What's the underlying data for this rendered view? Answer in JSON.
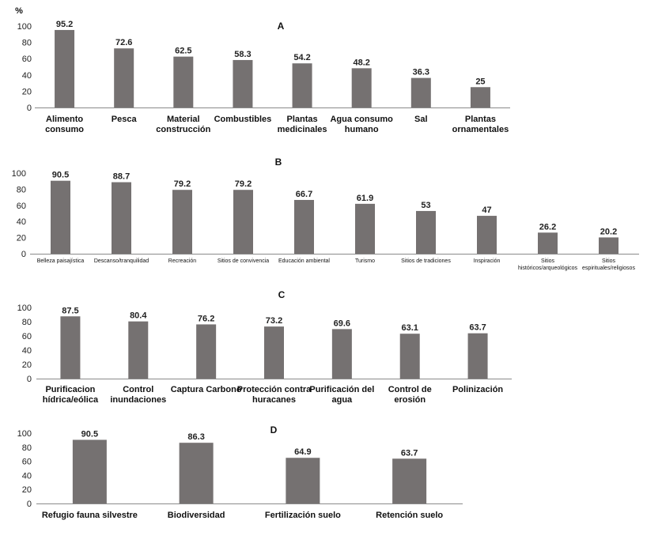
{
  "y_unit": "%",
  "chart_data": [
    {
      "type": "bar",
      "panel": "A",
      "categories": [
        [
          "Alimento",
          "consumo"
        ],
        [
          "Pesca"
        ],
        [
          "Material",
          "construcción"
        ],
        [
          "Combustibles"
        ],
        [
          "Plantas",
          "medicinales"
        ],
        [
          "Agua consumo",
          "humano"
        ],
        [
          "Sal"
        ],
        [
          "Plantas",
          "ornamentales"
        ]
      ],
      "values": [
        95.2,
        72.6,
        62.5,
        58.3,
        54.2,
        48.2,
        36.3,
        25
      ],
      "value_labels": [
        "95.2",
        "72.6",
        "62.5",
        "58.3",
        "54.2",
        "48.2",
        "36.3",
        "25"
      ],
      "yticks": [
        "0",
        "20",
        "40",
        "60",
        "80",
        "100"
      ],
      "ylim": [
        0,
        100
      ],
      "grid": false
    },
    {
      "type": "bar",
      "panel": "B",
      "categories": [
        [
          "Belleza paisajística"
        ],
        [
          "Descanso/tranquilidad"
        ],
        [
          "Recreación"
        ],
        [
          "Sitios de convivencia"
        ],
        [
          "Educación ambiental"
        ],
        [
          "Turismo"
        ],
        [
          "Sitios de tradiciones"
        ],
        [
          "Inspiración"
        ],
        [
          "Sitios",
          "históricos/arqueológicos"
        ],
        [
          "Sitios",
          "espirituales/religiosos"
        ]
      ],
      "values": [
        90.5,
        88.7,
        79.2,
        79.2,
        66.7,
        61.9,
        53,
        47,
        26.2,
        20.2
      ],
      "value_labels": [
        "90.5",
        "88.7",
        "79.2",
        "79.2",
        "66.7",
        "61.9",
        "53",
        "47",
        "26.2",
        "20.2"
      ],
      "yticks": [
        "0",
        "20",
        "40",
        "60",
        "80",
        "100"
      ],
      "ylim": [
        0,
        100
      ],
      "grid": false
    },
    {
      "type": "bar",
      "panel": "C",
      "categories": [
        [
          "Purificacion",
          "hídrica/eólica"
        ],
        [
          "Control",
          "inundaciones"
        ],
        [
          "Captura Carbono"
        ],
        [
          "Protección contra",
          "huracanes"
        ],
        [
          "Purificación del",
          "agua"
        ],
        [
          "Control de",
          "erosión"
        ],
        [
          "Polinización"
        ]
      ],
      "values": [
        87.5,
        80.4,
        76.2,
        73.2,
        69.6,
        63.1,
        63.7
      ],
      "value_labels": [
        "87.5",
        "80.4",
        "76.2",
        "73.2",
        "69.6",
        "63.1",
        "63.7"
      ],
      "yticks": [
        "0",
        "20",
        "40",
        "60",
        "80",
        "100"
      ],
      "ylim": [
        0,
        100
      ],
      "grid": false
    },
    {
      "type": "bar",
      "panel": "D",
      "categories": [
        [
          "Refugio fauna silvestre"
        ],
        [
          "Biodiversidad"
        ],
        [
          "Fertilización suelo"
        ],
        [
          "Retención suelo"
        ]
      ],
      "values": [
        90.5,
        86.3,
        64.9,
        63.7
      ],
      "value_labels": [
        "90.5",
        "86.3",
        "64.9",
        "63.7"
      ],
      "yticks": [
        "0",
        "20",
        "40",
        "60",
        "80",
        "100"
      ],
      "ylim": [
        0,
        100
      ],
      "grid": false
    }
  ],
  "colors": {
    "bar": "#757171",
    "axis": "#8a8a8a",
    "text": "#111111"
  }
}
